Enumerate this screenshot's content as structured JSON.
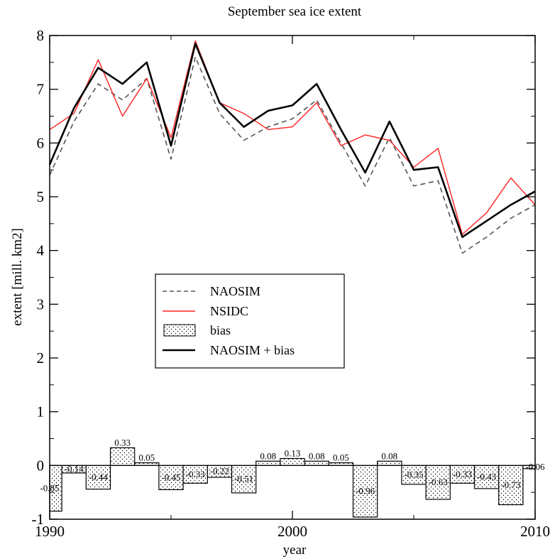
{
  "chart_data": {
    "type": "line",
    "title": "September sea ice extent",
    "xlabel": "year",
    "ylabel": "extent [mill. km2]",
    "xlim": [
      1990,
      2010
    ],
    "ylim": [
      -1,
      8
    ],
    "xticks": [
      1990,
      2000,
      2010
    ],
    "yticks": [
      -1,
      0,
      1,
      2,
      3,
      4,
      5,
      6,
      7,
      8
    ],
    "grid": false,
    "legend_position": "center-left",
    "x": [
      1990,
      1991,
      1992,
      1993,
      1994,
      1995,
      1996,
      1997,
      1998,
      1999,
      2000,
      2001,
      2002,
      2003,
      2004,
      2005,
      2006,
      2007,
      2008,
      2009,
      2010
    ],
    "series": [
      {
        "name": "NAOSIM",
        "style": "dashed",
        "color": "#555555",
        "values": [
          5.4,
          6.4,
          7.1,
          6.8,
          7.2,
          5.7,
          7.6,
          6.55,
          6.05,
          6.3,
          6.45,
          6.8,
          6.0,
          5.2,
          6.1,
          5.2,
          5.3,
          3.95,
          4.25,
          4.6,
          4.85
        ]
      },
      {
        "name": "NSIDC",
        "style": "solid-thin",
        "color": "#ff2020",
        "values": [
          6.25,
          6.55,
          7.55,
          6.5,
          7.2,
          6.1,
          7.9,
          6.75,
          6.55,
          6.25,
          6.3,
          6.75,
          5.95,
          6.15,
          6.05,
          5.55,
          5.9,
          4.3,
          4.7,
          5.35,
          4.85
        ]
      },
      {
        "name": "NAOSIM + bias",
        "style": "solid-thick",
        "color": "#000000",
        "values": [
          5.6,
          6.65,
          7.4,
          7.1,
          7.5,
          5.95,
          7.85,
          6.75,
          6.3,
          6.6,
          6.7,
          7.1,
          6.25,
          5.45,
          6.4,
          5.5,
          5.55,
          4.25,
          4.55,
          4.85,
          5.1
        ]
      },
      {
        "name": "bias",
        "style": "dotted-bar",
        "color": "#000000",
        "values": [
          -0.85,
          -0.14,
          -0.44,
          0.33,
          0.05,
          -0.45,
          -0.33,
          -0.22,
          -0.51,
          0.08,
          0.13,
          0.08,
          0.05,
          -0.96,
          0.08,
          -0.35,
          -0.63,
          -0.33,
          -0.43,
          -0.73,
          -0.06
        ],
        "labels": [
          "-0.85",
          "-0.14",
          "-0.44",
          "0.33",
          "0.05",
          "-0.45",
          "-0.33",
          "-0.22",
          "-0.51",
          "0.08",
          "0.13",
          "0.08",
          "0.05",
          "-0.96",
          "0.08",
          "-0.35",
          "-0.63",
          "-0.33",
          "-0.43",
          "-0.73",
          "-0.06"
        ]
      }
    ]
  }
}
